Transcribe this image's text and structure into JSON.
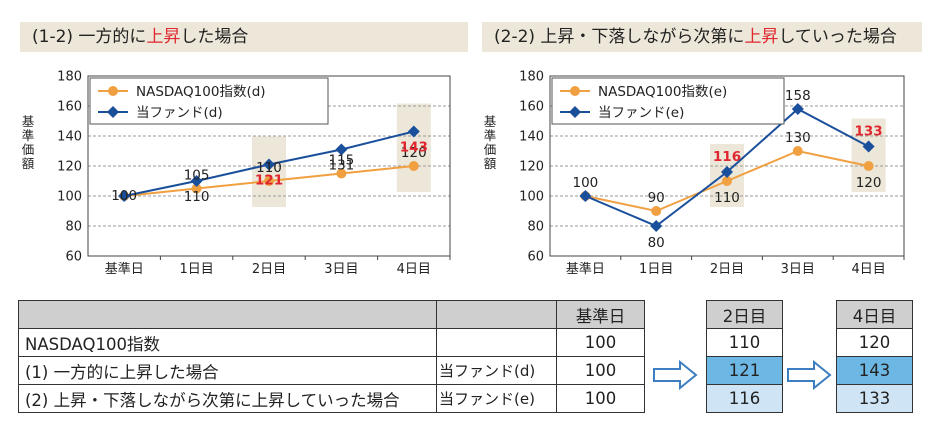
{
  "panels": [
    {
      "title_prefix": "(1-2) 一方的に",
      "title_hl": "上昇",
      "title_suffix": "した場合"
    },
    {
      "title_prefix": "(2-2) 上昇・下落しながら次第に",
      "title_hl": "上昇",
      "title_suffix": "していった場合"
    }
  ],
  "colors": {
    "nasdaq": "#f0a040",
    "fund": "#1a4f9c",
    "highlight": "#e0262f",
    "band": "#ece7d8"
  },
  "chart_data": [
    {
      "type": "line",
      "categories": [
        "基準日",
        "1日目",
        "2日目",
        "3日目",
        "4日目"
      ],
      "ylabel": "基準価額",
      "ylim": [
        60,
        180
      ],
      "yticks": [
        60,
        80,
        100,
        120,
        140,
        160,
        180
      ],
      "grid": true,
      "legend_position": "top-left",
      "highlighted_categories": [
        "2日目",
        "4日目"
      ],
      "series": [
        {
          "name": "NASDAQ100指数(d)",
          "values": [
            100,
            105,
            110,
            115,
            120
          ],
          "labels": [
            "",
            "105",
            "110",
            "115",
            "120"
          ]
        },
        {
          "name": "当ファンド(d)",
          "values": [
            100,
            110,
            121,
            131,
            143
          ],
          "labels": [
            "100",
            "110",
            "121",
            "131",
            "143"
          ]
        }
      ]
    },
    {
      "type": "line",
      "categories": [
        "基準日",
        "1日目",
        "2日目",
        "3日目",
        "4日目"
      ],
      "ylabel": "基準価額",
      "ylim": [
        60,
        180
      ],
      "yticks": [
        60,
        80,
        100,
        120,
        140,
        160,
        180
      ],
      "grid": true,
      "legend_position": "top-left",
      "highlighted_categories": [
        "2日目",
        "4日目"
      ],
      "series": [
        {
          "name": "NASDAQ100指数(e)",
          "values": [
            100,
            90,
            110,
            130,
            120
          ],
          "labels": [
            "100",
            "90",
            "110",
            "130",
            "120"
          ]
        },
        {
          "name": "当ファンド(e)",
          "values": [
            100,
            80,
            116,
            158,
            133
          ],
          "labels": [
            "",
            "80",
            "116",
            "158",
            "133"
          ]
        }
      ]
    }
  ],
  "table": {
    "header_day0": "基準日",
    "rows": [
      {
        "label": "NASDAQ100指数",
        "fund": "",
        "day0": "100"
      },
      {
        "label": "(1) 一方的に上昇した場合",
        "fund": "当ファンド(d)",
        "day0": "100"
      },
      {
        "label": "(2) 上昇・下落しながら次第に上昇していった場合",
        "fund": "当ファンド(e)",
        "day0": "100"
      }
    ],
    "day2": {
      "header": "2日目",
      "values": [
        "110",
        "121",
        "116"
      ]
    },
    "day4": {
      "header": "4日目",
      "values": [
        "120",
        "143",
        "133"
      ]
    }
  }
}
